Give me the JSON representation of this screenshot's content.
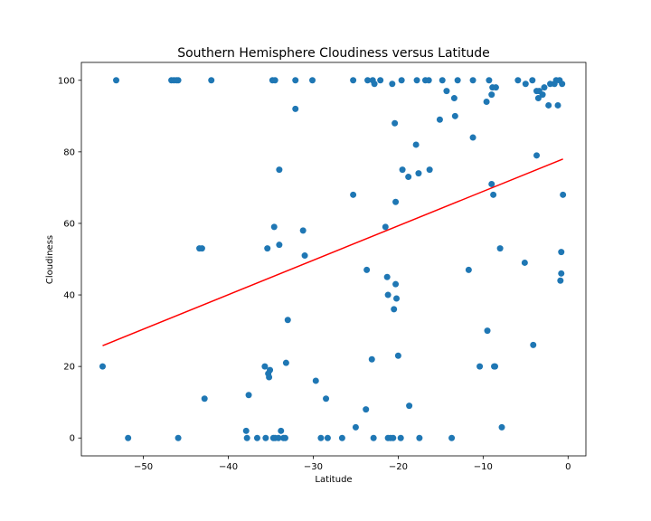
{
  "chart_data": {
    "type": "scatter",
    "title": "Southern Hemisphere Cloudiness versus Latitude",
    "xlabel": "Latitude",
    "ylabel": "Cloudiness",
    "xlim": [
      -57.3,
      2.1
    ],
    "ylim": [
      -5,
      105
    ],
    "xticks": [
      -50,
      -40,
      -30,
      -20,
      -10,
      0
    ],
    "yticks": [
      0,
      20,
      40,
      60,
      80,
      100
    ],
    "xtick_labels": [
      "−50",
      "−40",
      "−30",
      "−20",
      "−10",
      "0"
    ],
    "ytick_labels": [
      "0",
      "20",
      "40",
      "60",
      "80",
      "100"
    ],
    "grid": false,
    "point_color": "#1f77b4",
    "line_color": "#ff0000",
    "regression": {
      "x": [
        -54.8,
        -0.6
      ],
      "y": [
        25.8,
        78.0
      ]
    },
    "points": {
      "x": [
        -53.2,
        -46.7,
        -46.4,
        -46.1,
        -45.9,
        -42.0,
        -34.8,
        -34.5,
        -32.1,
        -30.1,
        -25.3,
        -23.6,
        -23.0,
        -22.8,
        -22.1,
        -20.7,
        -19.6,
        -17.8,
        -16.8,
        -16.4,
        -14.8,
        -13.0,
        -11.2,
        -9.3,
        -5.9,
        -5.0,
        -4.2,
        -2.1,
        -1.4,
        -1.0,
        -0.7,
        -54.8,
        -51.8,
        -45.9,
        -43.1,
        -42.8,
        -37.9,
        -37.8,
        -37.6,
        -36.6,
        -35.7,
        -35.6,
        -35.3,
        -35.2,
        -35.1,
        -34.7,
        -34.5,
        -34.1,
        -33.8,
        -33.5,
        -33.3,
        -33.0,
        -29.7,
        -29.1,
        -28.5,
        -28.3,
        -26.6,
        -25.0,
        -23.8,
        -23.1,
        -22.9,
        -21.2,
        -20.9,
        -20.6,
        -20.0,
        -19.7,
        -18.7,
        -17.5,
        -13.7,
        -10.4,
        -8.6,
        -7.8,
        -43.4,
        -35.4,
        -34.6,
        -34.0,
        -31.2,
        -31.0,
        -33.2,
        -23.7,
        -20.5,
        -20.3,
        -20.2,
        -21.3,
        -21.2,
        -11.7,
        -9.5,
        -8.7,
        -8.0,
        -5.1,
        -4.1,
        -0.9,
        -0.8,
        -32.1,
        -20.4,
        -17.9,
        -13.3,
        -15.1,
        -11.2,
        -14.3,
        -13.4,
        -9.6,
        -9.0,
        -8.9,
        -8.5,
        -3.7,
        -3.5,
        -3.0,
        -2.3,
        -1.2,
        -0.8,
        -25.3,
        -21.5,
        -20.3,
        -19.5,
        -18.8,
        -17.6,
        -16.3,
        -9.0,
        -8.8,
        -3.4,
        -2.8,
        -1.6,
        -0.6,
        -34.0,
        -3.7
      ],
      "y": [
        100,
        100,
        100,
        100,
        100,
        100,
        100,
        100,
        100,
        100,
        100,
        100,
        100,
        99,
        100,
        99,
        100,
        100,
        100,
        100,
        100,
        100,
        100,
        100,
        100,
        99,
        100,
        99,
        100,
        100,
        99,
        20,
        0,
        0,
        53,
        11,
        2,
        0,
        12,
        0,
        20,
        0,
        18,
        17,
        19,
        0,
        0,
        0,
        2,
        0,
        0,
        33,
        16,
        0,
        11,
        0,
        0,
        3,
        8,
        22,
        0,
        0,
        0,
        0,
        23,
        0,
        9,
        0,
        0,
        20,
        20,
        3,
        53,
        53,
        59,
        54,
        58,
        51,
        21,
        47,
        36,
        43,
        39,
        45,
        40,
        47,
        30,
        20,
        53,
        49,
        26,
        44,
        46,
        92,
        88,
        82,
        90,
        89,
        84,
        97,
        95,
        94,
        96,
        98,
        98,
        97,
        95,
        96,
        93,
        93,
        52,
        68,
        59,
        66,
        75,
        73,
        74,
        75,
        71,
        68,
        97,
        98,
        99,
        68,
        75,
        79
      ]
    }
  }
}
